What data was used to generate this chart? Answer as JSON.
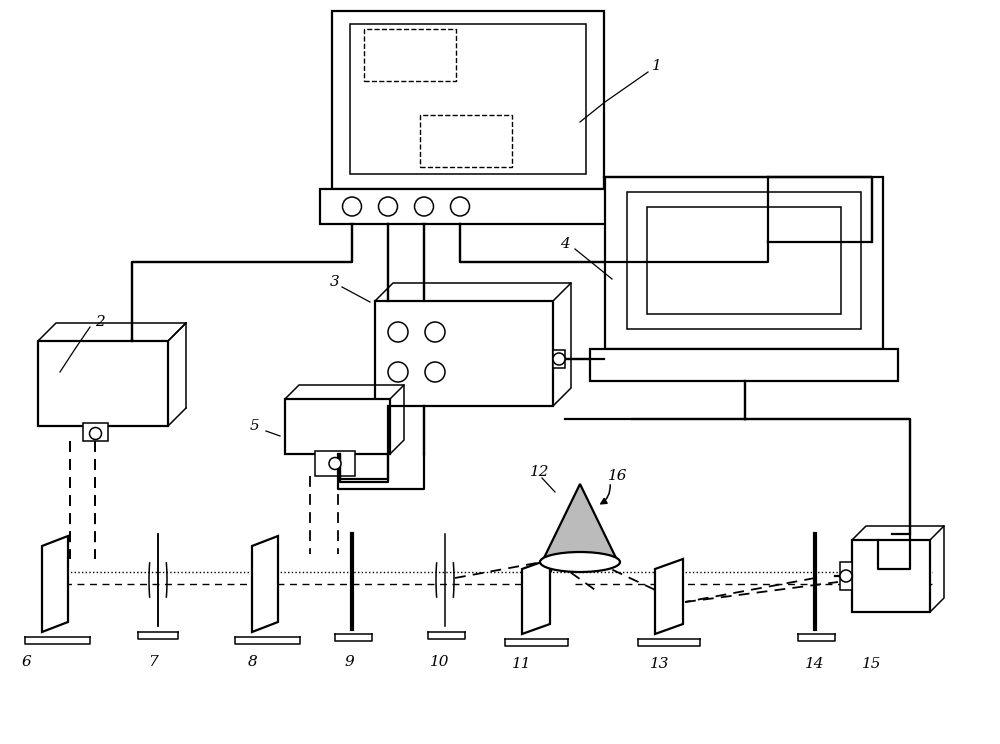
{
  "bg_color": "#ffffff",
  "lc": "#000000",
  "fig_width": 10.0,
  "fig_height": 7.44,
  "lw": 1.6,
  "lw_thin": 1.1,
  "lw_thick": 2.2
}
